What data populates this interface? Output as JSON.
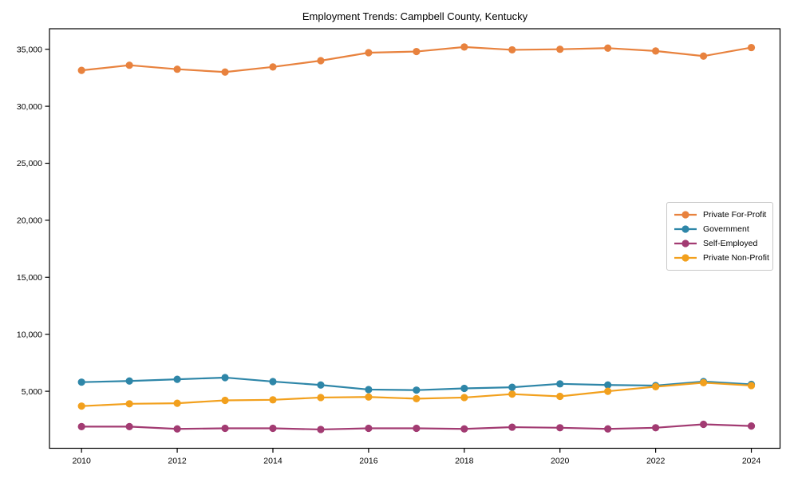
{
  "figure": {
    "title": "Employment Trends: Campbell County, Kentucky",
    "background_color": "#ffffff",
    "spine_color": "#000000",
    "legend_border_color": "#c8c8c8"
  },
  "chart_data": {
    "type": "line",
    "title": "Employment Trends: Campbell County, Kentucky",
    "xlabel": "",
    "ylabel": "",
    "grid": false,
    "legend_position": "center-right",
    "x": [
      2010,
      2011,
      2012,
      2013,
      2014,
      2015,
      2016,
      2017,
      2018,
      2019,
      2020,
      2021,
      2022,
      2023,
      2024
    ],
    "xticks": [
      2010,
      2012,
      2014,
      2016,
      2018,
      2020,
      2022,
      2024
    ],
    "yticks": [
      5000,
      10000,
      15000,
      20000,
      25000,
      30000,
      35000
    ],
    "ytick_labels": [
      "5,000",
      "10,000",
      "15,000",
      "20,000",
      "25,000",
      "30,000",
      "35,000"
    ],
    "xlim": [
      2009.33,
      2024.6
    ],
    "ylim": [
      0,
      36800
    ],
    "series": [
      {
        "name": "Private For-Profit",
        "color": "#E8823E",
        "values": [
          33150,
          33600,
          33250,
          33000,
          33450,
          34000,
          34700,
          34800,
          35200,
          34950,
          35000,
          35100,
          34850,
          34400,
          35150
        ]
      },
      {
        "name": "Government",
        "color": "#2E86A8",
        "values": [
          5800,
          5900,
          6050,
          6200,
          5850,
          5550,
          5150,
          5100,
          5250,
          5350,
          5650,
          5550,
          5500,
          5850,
          5600
        ]
      },
      {
        "name": "Self-Employed",
        "color": "#A23B72",
        "values": [
          1900,
          1900,
          1700,
          1750,
          1750,
          1650,
          1750,
          1750,
          1700,
          1850,
          1800,
          1700,
          1800,
          2100,
          1950
        ]
      },
      {
        "name": "Private Non-Profit",
        "color": "#F2A01D",
        "values": [
          3700,
          3900,
          3950,
          4200,
          4250,
          4450,
          4500,
          4350,
          4450,
          4750,
          4550,
          5000,
          5400,
          5750,
          5500
        ]
      }
    ]
  }
}
